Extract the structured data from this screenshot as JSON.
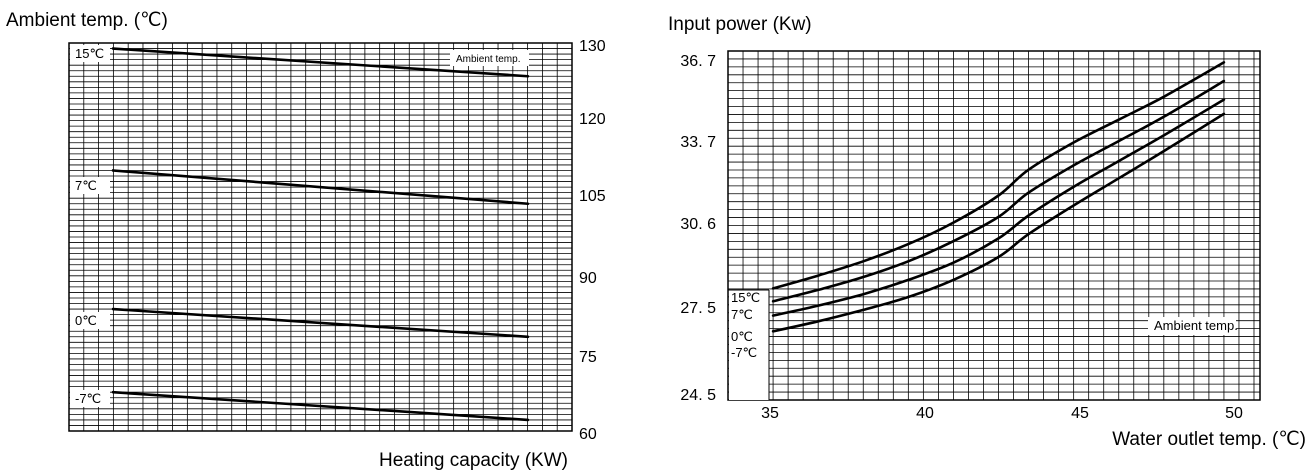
{
  "chart_data": [
    {
      "type": "line",
      "title": "",
      "ylabel": "Ambient temp. (℃)",
      "xlabel": "Heating capacity (KW)",
      "right_axis_ticks": [
        "130",
        "120",
        "105",
        "90",
        "75",
        "60"
      ],
      "ylim": [
        60,
        130
      ],
      "x_steps": 34,
      "grid": true,
      "legend_note": "Ambient temp.",
      "series": [
        {
          "name": "15℃",
          "y_start": 129,
          "y_end": 124
        },
        {
          "name": "7℃",
          "y_start": 107,
          "y_end": 101
        },
        {
          "name": "0℃",
          "y_start": 82,
          "y_end": 77
        },
        {
          "name": "-7℃",
          "y_start": 67,
          "y_end": 62
        }
      ]
    },
    {
      "type": "line",
      "title": "",
      "ylabel": "Input power (Kw)",
      "xlabel": "Water outlet temp. (℃)",
      "x_ticks": [
        "35",
        "40",
        "45",
        "50"
      ],
      "y_ticks": [
        "36. 7",
        "33. 7",
        "30. 6",
        "27. 5",
        "24. 5"
      ],
      "xlim": [
        33.5,
        51.2
      ],
      "ylim": [
        24.5,
        36.7
      ],
      "grid": true,
      "legend_note": "Ambient temp.",
      "series": [
        {
          "name": "15℃",
          "x": [
            35,
            36.5,
            38,
            39.5,
            41,
            42.5,
            43.5,
            45,
            46.5,
            48,
            50
          ],
          "y": [
            28.4,
            28.85,
            29.35,
            29.95,
            30.7,
            31.65,
            32.55,
            33.5,
            34.3,
            35.1,
            36.3
          ]
        },
        {
          "name": "7℃",
          "x": [
            35,
            36.5,
            38,
            39.5,
            41,
            42.5,
            43.5,
            45,
            46.5,
            48,
            50
          ],
          "y": [
            27.95,
            28.35,
            28.8,
            29.35,
            30.05,
            30.9,
            31.75,
            32.7,
            33.55,
            34.4,
            35.65
          ]
        },
        {
          "name": "0℃",
          "x": [
            35,
            36.5,
            38,
            39.5,
            41,
            42.5,
            43.5,
            45,
            46.5,
            48,
            50
          ],
          "y": [
            27.45,
            27.8,
            28.2,
            28.7,
            29.3,
            30.15,
            30.95,
            31.95,
            32.85,
            33.75,
            35.0
          ]
        },
        {
          "name": "-7℃",
          "x": [
            35,
            36.5,
            38,
            39.5,
            41,
            42.5,
            43.5,
            45,
            46.5,
            48,
            50
          ],
          "y": [
            26.9,
            27.25,
            27.65,
            28.1,
            28.7,
            29.5,
            30.3,
            31.3,
            32.25,
            33.2,
            34.5
          ]
        }
      ]
    }
  ]
}
